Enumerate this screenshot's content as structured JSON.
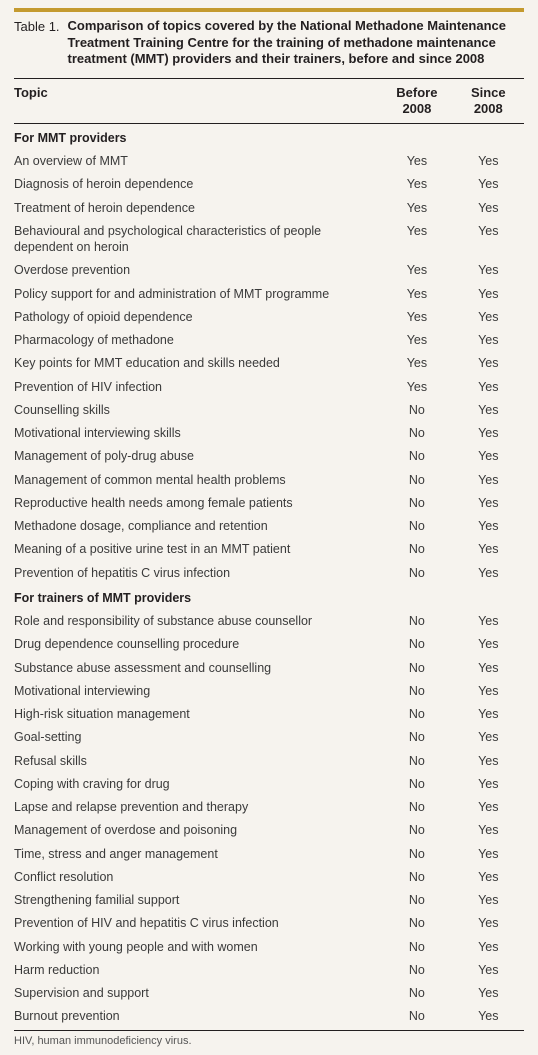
{
  "colors": {
    "accent_rule": "#c49a2f",
    "divider": "#231f20",
    "background": "#f6f3ee"
  },
  "caption": {
    "label": "Table 1.",
    "title": "Comparison of topics covered by the National Methadone Maintenance Treatment Training Centre for the training of methadone maintenance treatment (MMT) providers and their trainers, before and since 2008"
  },
  "columns": {
    "topic": "Topic",
    "before_l1": "Before",
    "before_l2": "2008",
    "since_l1": "Since",
    "since_l2": "2008"
  },
  "sections": [
    {
      "heading": "For MMT providers",
      "rows": [
        {
          "topic": "An overview of MMT",
          "before": "Yes",
          "since": "Yes"
        },
        {
          "topic": "Diagnosis of heroin dependence",
          "before": "Yes",
          "since": "Yes"
        },
        {
          "topic": "Treatment of heroin dependence",
          "before": "Yes",
          "since": "Yes"
        },
        {
          "topic": "Behavioural and psychological characteristics of people dependent on heroin",
          "before": "Yes",
          "since": "Yes"
        },
        {
          "topic": "Overdose prevention",
          "before": "Yes",
          "since": "Yes"
        },
        {
          "topic": "Policy support for and administration of MMT programme",
          "before": "Yes",
          "since": "Yes"
        },
        {
          "topic": "Pathology of opioid dependence",
          "before": "Yes",
          "since": "Yes"
        },
        {
          "topic": "Pharmacology of methadone",
          "before": "Yes",
          "since": "Yes"
        },
        {
          "topic": "Key points for MMT education and skills needed",
          "before": "Yes",
          "since": "Yes"
        },
        {
          "topic": "Prevention of HIV infection",
          "before": "Yes",
          "since": "Yes"
        },
        {
          "topic": "Counselling skills",
          "before": "No",
          "since": "Yes"
        },
        {
          "topic": "Motivational interviewing skills",
          "before": "No",
          "since": "Yes"
        },
        {
          "topic": "Management of poly-drug abuse",
          "before": "No",
          "since": "Yes"
        },
        {
          "topic": "Management of common mental health problems",
          "before": "No",
          "since": "Yes"
        },
        {
          "topic": "Reproductive health needs among female patients",
          "before": "No",
          "since": "Yes"
        },
        {
          "topic": "Methadone dosage, compliance and retention",
          "before": "No",
          "since": "Yes"
        },
        {
          "topic": "Meaning of a positive urine test in an MMT patient",
          "before": "No",
          "since": "Yes"
        },
        {
          "topic": "Prevention of hepatitis C virus infection",
          "before": "No",
          "since": "Yes"
        }
      ]
    },
    {
      "heading": "For trainers of MMT providers",
      "rows": [
        {
          "topic": "Role and responsibility of substance abuse counsellor",
          "before": "No",
          "since": "Yes"
        },
        {
          "topic": "Drug dependence counselling procedure",
          "before": "No",
          "since": "Yes"
        },
        {
          "topic": "Substance abuse assessment and counselling",
          "before": "No",
          "since": "Yes"
        },
        {
          "topic": "Motivational interviewing",
          "before": "No",
          "since": "Yes"
        },
        {
          "topic": "High-risk situation management",
          "before": "No",
          "since": "Yes"
        },
        {
          "topic": "Goal-setting",
          "before": "No",
          "since": "Yes"
        },
        {
          "topic": "Refusal skills",
          "before": "No",
          "since": "Yes"
        },
        {
          "topic": "Coping with craving for drug",
          "before": "No",
          "since": "Yes"
        },
        {
          "topic": "Lapse and relapse prevention and therapy",
          "before": "No",
          "since": "Yes"
        },
        {
          "topic": "Management of overdose and poisoning",
          "before": "No",
          "since": "Yes"
        },
        {
          "topic": "Time, stress and anger management",
          "before": "No",
          "since": "Yes"
        },
        {
          "topic": "Conflict resolution",
          "before": "No",
          "since": "Yes"
        },
        {
          "topic": "Strengthening familial support",
          "before": "No",
          "since": "Yes"
        },
        {
          "topic": "Prevention of HIV and hepatitis C virus infection",
          "before": "No",
          "since": "Yes"
        },
        {
          "topic": "Working with young people and with women",
          "before": "No",
          "since": "Yes"
        },
        {
          "topic": "Harm reduction",
          "before": "No",
          "since": "Yes"
        },
        {
          "topic": "Supervision and support",
          "before": "No",
          "since": "Yes"
        },
        {
          "topic": "Burnout prevention",
          "before": "No",
          "since": "Yes"
        }
      ]
    }
  ],
  "footnote": "HIV, human immunodeficiency virus."
}
